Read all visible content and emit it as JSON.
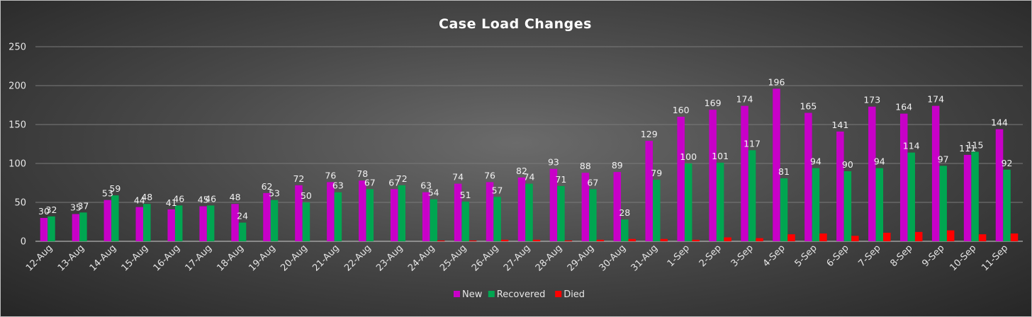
{
  "chart_data": {
    "type": "bar",
    "title": "Case Load Changes",
    "xlabel": "",
    "ylabel": "",
    "ylim": [
      0,
      250
    ],
    "yticks": [
      0,
      50,
      100,
      150,
      200,
      250
    ],
    "grid": true,
    "legend_position": "bottom",
    "categories": [
      "12-Aug",
      "13-Aug",
      "14-Aug",
      "15-Aug",
      "16-Aug",
      "17-Aug",
      "18-Aug",
      "19-Aug",
      "20-Aug",
      "21-Aug",
      "22-Aug",
      "23-Aug",
      "24-Aug",
      "25-Aug",
      "26-Aug",
      "27-Aug",
      "28-Aug",
      "29-Aug",
      "30-Aug",
      "31-Aug",
      "1-Sep",
      "2-Sep",
      "3-Sep",
      "4-Sep",
      "5-Sep",
      "6-Sep",
      "7-Sep",
      "8-Sep",
      "9-Sep",
      "10-Sep",
      "11-Sep"
    ],
    "series": [
      {
        "name": "New",
        "color": "#c800c8",
        "show_labels": true,
        "values": [
          30,
          35,
          53,
          44,
          41,
          45,
          48,
          62,
          72,
          76,
          78,
          67,
          63,
          74,
          76,
          82,
          93,
          88,
          89,
          129,
          160,
          169,
          174,
          196,
          165,
          141,
          173,
          164,
          174,
          111,
          144
        ]
      },
      {
        "name": "Recovered",
        "color": "#00a651",
        "show_labels": true,
        "values": [
          32,
          37,
          59,
          48,
          46,
          46,
          24,
          53,
          50,
          63,
          67,
          72,
          54,
          51,
          57,
          74,
          71,
          67,
          28,
          79,
          100,
          101,
          117,
          81,
          94,
          90,
          94,
          114,
          97,
          115,
          92
        ]
      },
      {
        "name": "Died",
        "color": "#ff0000",
        "show_labels": false,
        "values": [
          0,
          0,
          0,
          0,
          0,
          0,
          0,
          0,
          0,
          0,
          0,
          0,
          1,
          1,
          2,
          2,
          1,
          2,
          3,
          3,
          2,
          5,
          4,
          9,
          10,
          7,
          11,
          12,
          14,
          9,
          10
        ]
      }
    ]
  }
}
